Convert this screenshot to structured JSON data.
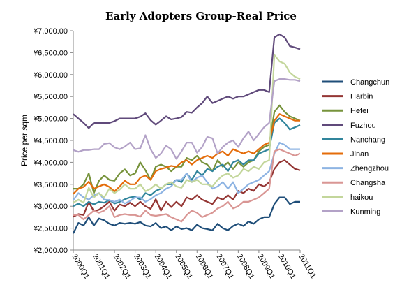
{
  "chart_data": {
    "type": "line",
    "title": "Early Adopters Group-Real Price",
    "ylabel": "Price per sqm",
    "xlabel": "",
    "ylim": [
      2000,
      7000
    ],
    "y_ticks": [
      2000,
      2500,
      3000,
      3500,
      4000,
      4500,
      5000,
      5500,
      6000,
      6500,
      7000
    ],
    "y_tick_labels": [
      "¥2,000.00",
      "¥2,500.00",
      "¥3,000.00",
      "¥3,500.00",
      "¥4,000.00",
      "¥4,500.00",
      "¥5,000.00",
      "¥5,500.00",
      "¥6,000.00",
      "¥6,500.00",
      "¥7,000.00"
    ],
    "x": [
      "2000Q1",
      "2000Q2",
      "2000Q3",
      "2000Q4",
      "2001Q1",
      "2001Q2",
      "2001Q3",
      "2001Q4",
      "2002Q1",
      "2002Q2",
      "2002Q3",
      "2002Q4",
      "2003Q1",
      "2003Q2",
      "2003Q3",
      "2003Q4",
      "2004Q1",
      "2004Q2",
      "2004Q3",
      "2004Q4",
      "2005Q1",
      "2005Q2",
      "2005Q3",
      "2005Q4",
      "2006Q1",
      "2006Q2",
      "2006Q3",
      "2006Q4",
      "2007Q1",
      "2007Q2",
      "2007Q3",
      "2007Q4",
      "2008Q1",
      "2008Q2",
      "2008Q3",
      "2008Q4",
      "2009Q1",
      "2009Q2",
      "2009Q3",
      "2009Q4",
      "2010Q1",
      "2010Q2",
      "2010Q3",
      "2010Q4",
      "2011Q1"
    ],
    "x_tick_labels": [
      "2000Q1",
      "2001Q1",
      "2002Q1",
      "2003Q1",
      "2004Q1",
      "2005Q1",
      "2006Q1",
      "2007Q1",
      "2008Q1",
      "2009Q1",
      "2010Q1",
      "2011Q1"
    ],
    "grid": false,
    "legend_position": "right",
    "series": [
      {
        "name": "Changchun",
        "color": "#1F4E79",
        "values": [
          2380,
          2620,
          2560,
          2750,
          2560,
          2720,
          2680,
          2600,
          2560,
          2620,
          2600,
          2620,
          2600,
          2640,
          2560,
          2540,
          2620,
          2500,
          2540,
          2450,
          2540,
          2480,
          2500,
          2450,
          2580,
          2500,
          2480,
          2450,
          2600,
          2500,
          2450,
          2550,
          2600,
          2550,
          2650,
          2600,
          2700,
          2750,
          2750,
          3050,
          3200,
          3200,
          3050,
          3100,
          3100
        ]
      },
      {
        "name": "Harbin",
        "color": "#943634",
        "values": [
          2760,
          2820,
          2800,
          3100,
          2880,
          2920,
          3000,
          3100,
          2900,
          3040,
          3000,
          3080,
          3000,
          3100,
          3000,
          2940,
          3160,
          2900,
          3100,
          2980,
          3100,
          3000,
          3200,
          3150,
          3250,
          3150,
          3100,
          3050,
          3200,
          3150,
          3250,
          3150,
          3350,
          3300,
          3400,
          3350,
          3500,
          3450,
          3550,
          3850,
          4000,
          4050,
          3950,
          3850,
          3820
        ]
      },
      {
        "name": "Hefei",
        "color": "#77933C",
        "values": [
          3400,
          3400,
          3500,
          3750,
          3300,
          3580,
          3700,
          3600,
          3580,
          3750,
          3840,
          3700,
          3750,
          4000,
          3820,
          3600,
          3900,
          3950,
          3900,
          3800,
          3900,
          3900,
          4100,
          4050,
          4150,
          4000,
          3950,
          3800,
          4050,
          3900,
          4000,
          3850,
          4000,
          3900,
          4000,
          4050,
          4250,
          4350,
          4400,
          5150,
          5300,
          5150,
          5050,
          5000,
          4950
        ]
      },
      {
        "name": "Fuzhou",
        "color": "#604A7B",
        "values": [
          5100,
          5000,
          4900,
          4780,
          4900,
          4900,
          4900,
          4900,
          4940,
          5000,
          5000,
          5000,
          5000,
          5040,
          5120,
          4960,
          4860,
          4950,
          5050,
          4980,
          5000,
          5030,
          5150,
          5130,
          5250,
          5350,
          5500,
          5350,
          5400,
          5450,
          5500,
          5450,
          5500,
          5500,
          5550,
          5600,
          5650,
          5650,
          5600,
          6850,
          6920,
          6850,
          6650,
          6620,
          6580
        ]
      },
      {
        "name": "Nanchang",
        "color": "#31859C",
        "values": [
          3000,
          3060,
          3000,
          3100,
          3040,
          3100,
          3080,
          3140,
          3060,
          3100,
          3160,
          3200,
          3220,
          3150,
          3300,
          3250,
          3350,
          3400,
          3500,
          3500,
          3600,
          3550,
          3750,
          3600,
          3800,
          3700,
          3850,
          3800,
          3900,
          3950,
          3800,
          4000,
          4050,
          3950,
          4050,
          4050,
          4200,
          4250,
          4300,
          4900,
          5000,
          4900,
          4750,
          4800,
          4850
        ]
      },
      {
        "name": "Jinan",
        "color": "#E46C0A",
        "values": [
          3280,
          3400,
          3440,
          3560,
          3400,
          3450,
          3500,
          3440,
          3340,
          3450,
          3580,
          3500,
          3500,
          3650,
          3700,
          3600,
          3800,
          3850,
          3880,
          3920,
          3900,
          4000,
          4050,
          3950,
          4050,
          4100,
          4150,
          4100,
          4200,
          4250,
          4150,
          4300,
          4250,
          4200,
          4250,
          4200,
          4300,
          4400,
          4450,
          4950,
          5100,
          5050,
          5000,
          4950,
          4950
        ]
      },
      {
        "name": "Zhengzhou",
        "color": "#8EB4E3",
        "values": [
          3140,
          3300,
          3200,
          3150,
          3250,
          3300,
          3150,
          3140,
          3100,
          3150,
          3060,
          3120,
          3200,
          3200,
          3100,
          3160,
          3250,
          3300,
          3400,
          3450,
          3600,
          3600,
          3750,
          3550,
          3650,
          3700,
          3550,
          3400,
          3450,
          3550,
          3400,
          3550,
          3300,
          3400,
          3500,
          3550,
          3600,
          3700,
          3800,
          4200,
          4450,
          4400,
          4300,
          4300,
          4300
        ]
      },
      {
        "name": "Changsha",
        "color": "#D99694",
        "values": [
          2800,
          2800,
          2700,
          2800,
          2900,
          2850,
          2900,
          3000,
          2750,
          2800,
          2820,
          2800,
          2800,
          2760,
          2900,
          2800,
          2780,
          2800,
          2820,
          2750,
          2700,
          2650,
          2800,
          2900,
          2850,
          2750,
          2800,
          2850,
          2950,
          3000,
          3100,
          2950,
          3000,
          3100,
          3100,
          3150,
          3200,
          3300,
          3400,
          4250,
          4300,
          4250,
          4200,
          4150,
          4200
        ]
      },
      {
        "name": "haikou",
        "color": "#C3D69B",
        "values": [
          3080,
          3150,
          3080,
          3420,
          3200,
          3300,
          3200,
          3400,
          3300,
          3380,
          3500,
          3400,
          3400,
          3500,
          3340,
          3400,
          3500,
          3400,
          3500,
          3550,
          3450,
          3420,
          3600,
          3550,
          3600,
          3500,
          3500,
          3450,
          3600,
          3700,
          3750,
          3650,
          3700,
          3850,
          3800,
          3900,
          3850,
          4000,
          4050,
          6450,
          6300,
          6250,
          6050,
          5950,
          5900
        ]
      },
      {
        "name": "Kunming",
        "color": "#B3A2C7",
        "values": [
          4280,
          4240,
          4280,
          4280,
          4300,
          4300,
          4420,
          4440,
          4340,
          4300,
          4360,
          4450,
          4300,
          4320,
          4620,
          4300,
          4100,
          4200,
          4380,
          4300,
          4080,
          4250,
          4450,
          4450,
          4220,
          4350,
          4580,
          4550,
          4200,
          4350,
          4450,
          4500,
          4350,
          4550,
          4700,
          4500,
          4650,
          4800,
          4900,
          5850,
          5900,
          5900,
          5880,
          5880,
          5850
        ]
      }
    ]
  }
}
